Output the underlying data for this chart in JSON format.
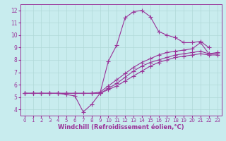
{
  "background_color": "#c8ecee",
  "grid_color": "#b0d8d8",
  "line_color": "#993399",
  "marker": "+",
  "markersize": 4,
  "linewidth": 0.8,
  "xlabel": "Windchill (Refroidissement éolien,°C)",
  "xlabel_fontsize": 6,
  "xtick_fontsize": 5,
  "ytick_fontsize": 5.5,
  "xlim": [
    -0.5,
    23.5
  ],
  "ylim": [
    3.5,
    12.5
  ],
  "xticks": [
    0,
    1,
    2,
    3,
    4,
    5,
    6,
    7,
    8,
    9,
    10,
    11,
    12,
    13,
    14,
    15,
    16,
    17,
    18,
    19,
    20,
    21,
    22,
    23
  ],
  "yticks": [
    4,
    5,
    6,
    7,
    8,
    9,
    10,
    11,
    12
  ],
  "lines": [
    {
      "x": [
        0,
        1,
        2,
        3,
        4,
        5,
        6,
        7,
        8,
        9,
        10,
        11,
        12,
        13,
        14,
        15,
        16,
        17,
        18,
        19,
        20,
        21,
        22
      ],
      "y": [
        5.3,
        5.3,
        5.3,
        5.3,
        5.3,
        5.2,
        5.1,
        3.8,
        4.4,
        5.3,
        7.9,
        9.2,
        11.4,
        11.9,
        12.0,
        11.5,
        10.3,
        10.0,
        9.8,
        9.4,
        9.4,
        9.5,
        9.0
      ]
    },
    {
      "x": [
        0,
        1,
        2,
        3,
        4,
        5,
        6,
        7,
        8,
        9,
        10,
        11,
        12,
        13,
        14,
        15,
        16,
        17,
        18,
        19,
        20,
        21,
        22,
        23
      ],
      "y": [
        5.3,
        5.3,
        5.3,
        5.3,
        5.3,
        5.3,
        5.3,
        5.3,
        5.3,
        5.4,
        5.9,
        6.4,
        6.9,
        7.4,
        7.8,
        8.1,
        8.4,
        8.6,
        8.7,
        8.8,
        8.9,
        9.4,
        8.5,
        8.6
      ]
    },
    {
      "x": [
        0,
        1,
        2,
        3,
        4,
        5,
        6,
        7,
        8,
        9,
        10,
        11,
        12,
        13,
        14,
        15,
        16,
        17,
        18,
        19,
        20,
        21,
        22,
        23
      ],
      "y": [
        5.3,
        5.3,
        5.3,
        5.3,
        5.3,
        5.3,
        5.3,
        5.3,
        5.3,
        5.3,
        5.7,
        6.1,
        6.6,
        7.1,
        7.5,
        7.8,
        8.0,
        8.2,
        8.4,
        8.5,
        8.6,
        8.7,
        8.5,
        8.5
      ]
    },
    {
      "x": [
        0,
        1,
        2,
        3,
        4,
        5,
        6,
        7,
        8,
        9,
        10,
        11,
        12,
        13,
        14,
        15,
        16,
        17,
        18,
        19,
        20,
        21,
        22,
        23
      ],
      "y": [
        5.3,
        5.3,
        5.3,
        5.3,
        5.3,
        5.3,
        5.3,
        5.3,
        5.3,
        5.3,
        5.6,
        5.9,
        6.3,
        6.7,
        7.1,
        7.5,
        7.8,
        8.0,
        8.2,
        8.3,
        8.4,
        8.5,
        8.4,
        8.4
      ]
    }
  ]
}
